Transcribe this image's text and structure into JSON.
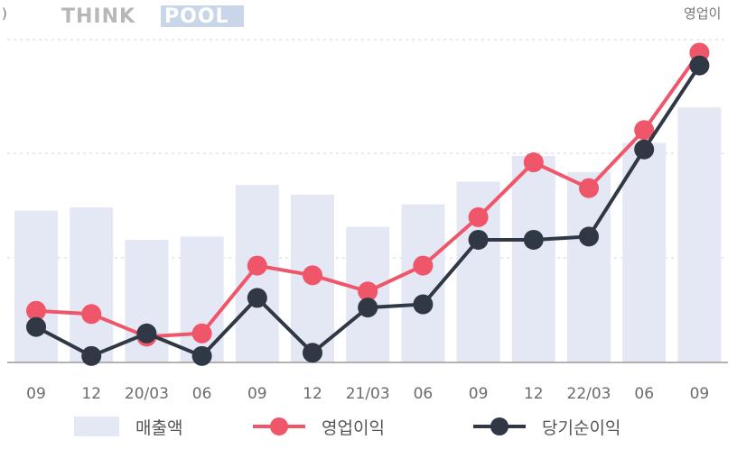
{
  "logo": {
    "part1": "THINK",
    "part2": "POOL"
  },
  "axis_left_unit": ")",
  "axis_right_unit": "영업이",
  "colors": {
    "bar": "#e4e7f4",
    "operating": "#f0566a",
    "net": "#2f3844",
    "grid": "#d6d6d6",
    "baseline": "#9a9a9a",
    "logo_box": "#c9d6ea"
  },
  "chart_data": {
    "type": "bar",
    "categories": [
      "09",
      "12",
      "20/03",
      "06",
      "09",
      "12",
      "21/03",
      "06",
      "09",
      "12",
      "22/03",
      "06",
      "09"
    ],
    "ylim": [
      0,
      100
    ],
    "grid": true,
    "legend_position": "bottom",
    "series": [
      {
        "name": "매출액",
        "type": "bar",
        "values": [
          47,
          48,
          38,
          39,
          55,
          52,
          42,
          49,
          56,
          64,
          59,
          68,
          79
        ]
      },
      {
        "name": "영업이익",
        "type": "line",
        "values": [
          16,
          15,
          8,
          9,
          30,
          27,
          22,
          30,
          45,
          62,
          54,
          72,
          96
        ]
      },
      {
        "name": "당기순이익",
        "type": "line",
        "values": [
          11,
          2,
          9,
          2,
          20,
          3,
          17,
          18,
          38,
          38,
          39,
          66,
          92
        ]
      }
    ]
  }
}
